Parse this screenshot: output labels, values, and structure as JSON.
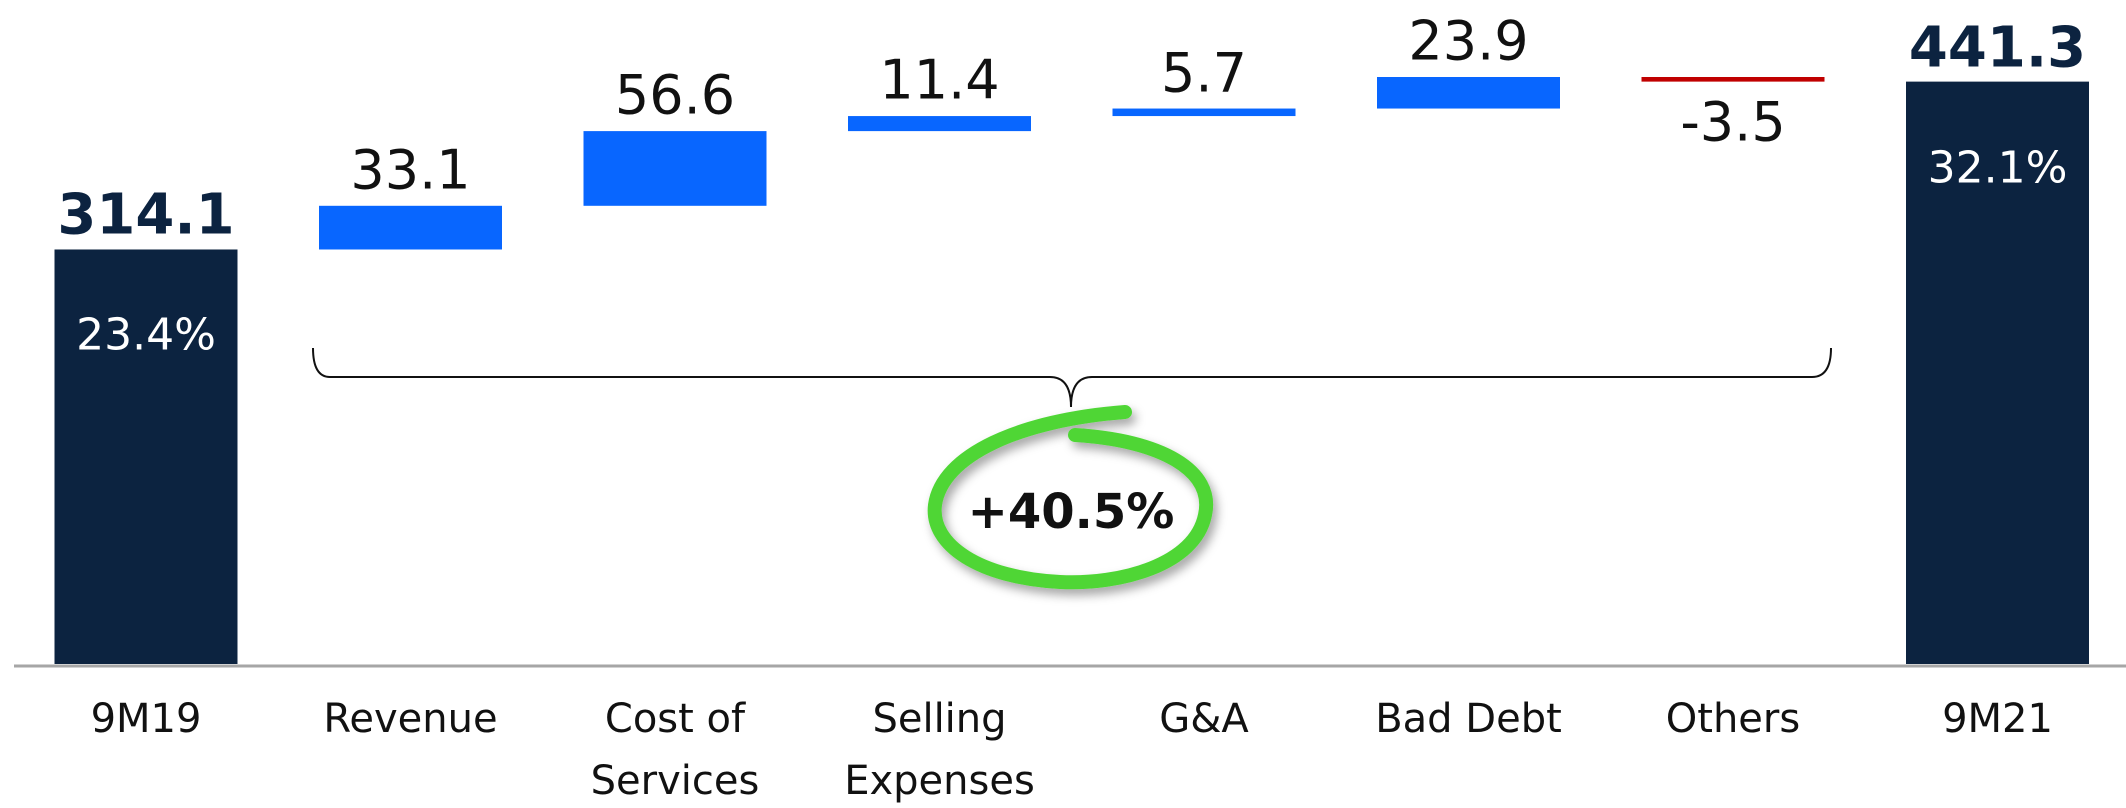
{
  "chart_data": {
    "type": "waterfall",
    "categories": [
      "9M19",
      "Revenue",
      "Cost of Services",
      "Selling Expenses",
      "G&A",
      "Bad Debt",
      "Others",
      "9M21"
    ],
    "values": [
      314.1,
      33.1,
      56.6,
      11.4,
      5.7,
      23.9,
      -3.5,
      441.3
    ],
    "total_labels": [
      "23.4%",
      "32.1%"
    ],
    "annotation": "+40.5%",
    "colors": {
      "total": "#0c2340",
      "increase": "#0866ff",
      "decrease": "#c00000"
    }
  }
}
